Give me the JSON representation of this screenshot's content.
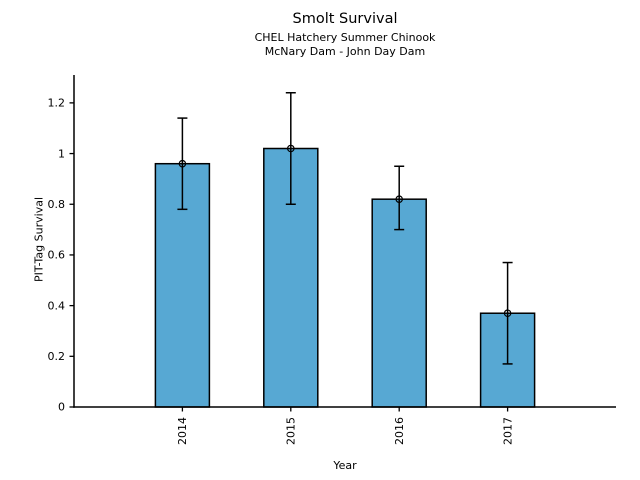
{
  "header": {
    "title": "Smolt Survival",
    "subtitle1": "CHEL Hatchery Summer Chinook",
    "subtitle2": "McNary Dam - John Day Dam"
  },
  "chart_data": {
    "type": "bar",
    "title": "Smolt Survival",
    "subtitle": [
      "CHEL Hatchery Summer Chinook",
      "McNary Dam - John Day Dam"
    ],
    "categories": [
      "2014",
      "2015",
      "2016",
      "2017"
    ],
    "values": [
      0.96,
      1.02,
      0.82,
      0.37
    ],
    "error_low": [
      0.78,
      0.8,
      0.7,
      0.17
    ],
    "error_high": [
      1.14,
      1.24,
      0.95,
      0.57
    ],
    "xlabel": "Year",
    "ylabel": "PIT-Tag Survival",
    "ytick_labels": [
      "0",
      "0.2",
      "0.4",
      "0.6",
      "0.8",
      "1",
      "1.2"
    ],
    "yticks": [
      0,
      0.2,
      0.4,
      0.6,
      0.8,
      1,
      1.2
    ],
    "ylim": [
      0,
      1.31
    ],
    "grid": false,
    "bar_color": "#57A8D3",
    "bar_edge_color": "#000000",
    "errorbar_color": "#000000",
    "marker": "open-circle",
    "x_tick_rotation": 90
  }
}
